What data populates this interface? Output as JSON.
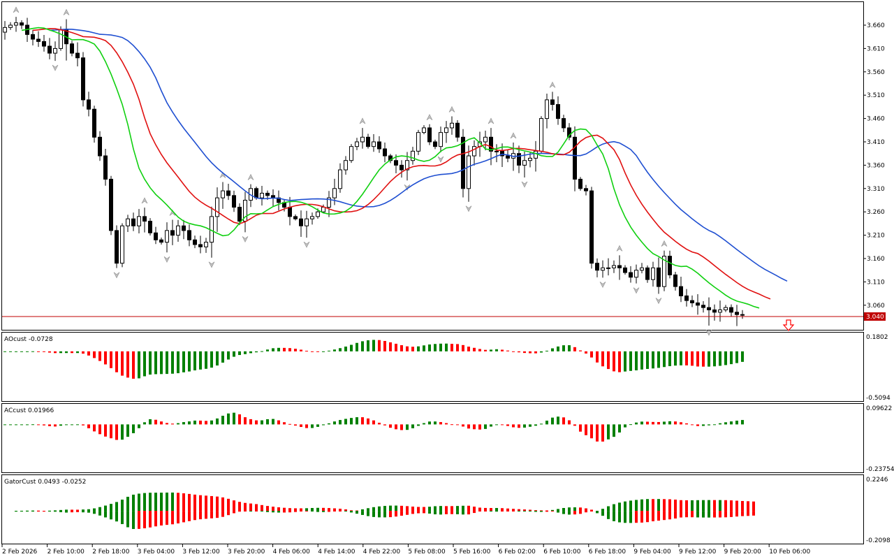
{
  "chart_data": [
    {
      "type": "candlestick",
      "pane": "main",
      "price_axis_ticks": [
        "3.660",
        "3.610",
        "3.560",
        "3.510",
        "3.460",
        "3.410",
        "3.360",
        "3.310",
        "3.260",
        "3.210",
        "3.160",
        "3.110",
        "3.060"
      ],
      "current_price": "3.040",
      "time_axis_labels": [
        "2 Feb 2026",
        "2 Feb 10:00",
        "2 Feb 18:00",
        "3 Feb 04:00",
        "3 Feb 12:00",
        "3 Feb 20:00",
        "4 Feb 06:00",
        "4 Feb 14:00",
        "4 Feb 22:00",
        "5 Feb 08:00",
        "5 Feb 16:00",
        "6 Feb 02:00",
        "6 Feb 10:00",
        "6 Feb 18:00",
        "9 Feb 04:00",
        "9 Feb 12:00",
        "9 Feb 20:00",
        "10 Feb 06:00"
      ],
      "ylim": [
        3.03,
        3.69
      ],
      "close": [
        3.655,
        3.66,
        3.665,
        3.66,
        3.64,
        3.63,
        3.625,
        3.615,
        3.6,
        3.61,
        3.65,
        3.62,
        3.6,
        3.59,
        3.5,
        3.48,
        3.42,
        3.38,
        3.33,
        3.22,
        3.15,
        3.23,
        3.245,
        3.23,
        3.25,
        3.24,
        3.215,
        3.2,
        3.195,
        3.22,
        3.21,
        3.23,
        3.22,
        3.2,
        3.19,
        3.185,
        3.195,
        3.25,
        3.29,
        3.305,
        3.295,
        3.27,
        3.24,
        3.285,
        3.31,
        3.29,
        3.3,
        3.295,
        3.29,
        3.28,
        3.27,
        3.25,
        3.245,
        3.23,
        3.245,
        3.25,
        3.26,
        3.27,
        3.29,
        3.31,
        3.35,
        3.37,
        3.4,
        3.41,
        3.42,
        3.4,
        3.41,
        3.395,
        3.38,
        3.37,
        3.36,
        3.35,
        3.37,
        3.39,
        3.43,
        3.44,
        3.41,
        3.4,
        3.43,
        3.44,
        3.45,
        3.42,
        3.31,
        3.38,
        3.4,
        3.41,
        3.42,
        3.39,
        3.39,
        3.38,
        3.375,
        3.385,
        3.36,
        3.37,
        3.375,
        3.39,
        3.46,
        3.5,
        3.49,
        3.46,
        3.44,
        3.42,
        3.33,
        3.31,
        3.305,
        3.15,
        3.135,
        3.14,
        3.14,
        3.145,
        3.14,
        3.13,
        3.12,
        3.135,
        3.14,
        3.115,
        3.14,
        3.1,
        3.165,
        3.125,
        3.1,
        3.08,
        3.07,
        3.065,
        3.06,
        3.055,
        3.05,
        3.045,
        3.05,
        3.055,
        3.045,
        3.04,
        3.04
      ]
    },
    {
      "type": "line",
      "pane": "main",
      "series": [
        {
          "name": "blue",
          "color": "#1f4fd1"
        },
        {
          "name": "red",
          "color": "#e01010"
        },
        {
          "name": "lime",
          "color": "#10d010"
        }
      ]
    },
    {
      "type": "histogram",
      "pane": "AOcust",
      "label": "AOcust -0.0728",
      "axis_max": "0.1802",
      "axis_min": "-0.5094",
      "ylim": [
        -0.5094,
        0.1802
      ]
    },
    {
      "type": "histogram",
      "pane": "ACcust",
      "label": "ACcust 0.01966",
      "axis_max": "0.09622",
      "axis_min": "-0.23754",
      "ylim": [
        -0.23754,
        0.09622
      ]
    },
    {
      "type": "histogram",
      "pane": "GatorCust",
      "label": "GatorCust 0.0493 -0.0252",
      "axis_max": "0.2246",
      "axis_min": "-0.2098",
      "ylim": [
        -0.2098,
        0.2246
      ]
    }
  ],
  "colors": {
    "up": "#008000",
    "down": "#ff0000",
    "price_line": "#c00000",
    "price_label_bg": "#c00000",
    "alert_arrow": "#ff0000"
  }
}
